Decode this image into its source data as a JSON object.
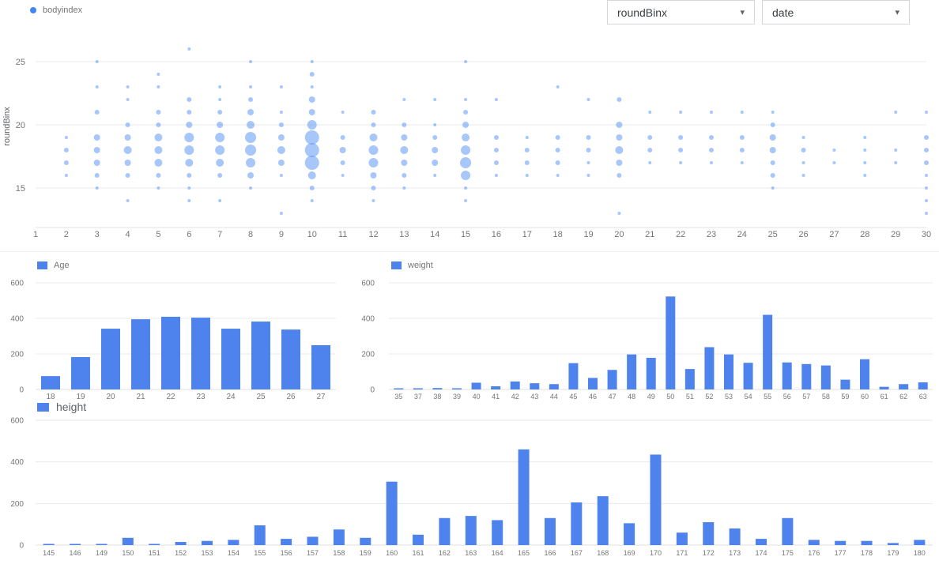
{
  "colors": {
    "accent": "#4285f4",
    "bar": "#4e82ec",
    "bubble": "#5e97f6",
    "grid": "#e9e9e9",
    "axis_line": "#e0e0e0",
    "axis_text": "#757575"
  },
  "icons": {
    "chevron_down": "▾"
  },
  "filters": [
    {
      "label": "roundBinx"
    },
    {
      "label": "date"
    }
  ],
  "chart_data": [
    {
      "id": "bodyindex-bubble",
      "type": "scatter",
      "legend": "bodyindex",
      "legend_position": "top-left",
      "ylabel": "roundBinx",
      "xlabel": "",
      "xlim": [
        1,
        30
      ],
      "ylim": [
        13,
        26
      ],
      "grid": true,
      "yticks": [
        15,
        20,
        25
      ],
      "xticks": [
        1,
        2,
        3,
        4,
        5,
        6,
        7,
        8,
        9,
        10,
        11,
        12,
        13,
        14,
        15,
        16,
        17,
        18,
        19,
        20,
        21,
        22,
        23,
        24,
        25,
        26,
        27,
        28,
        29,
        30
      ],
      "points": [
        [
          2,
          19,
          2
        ],
        [
          2,
          18,
          3
        ],
        [
          2,
          17,
          3
        ],
        [
          2,
          16,
          2
        ],
        [
          3,
          25,
          2
        ],
        [
          3,
          23,
          2
        ],
        [
          3,
          21,
          3
        ],
        [
          3,
          19,
          4
        ],
        [
          3,
          18,
          4
        ],
        [
          3,
          17,
          4
        ],
        [
          3,
          16,
          3
        ],
        [
          3,
          15,
          2
        ],
        [
          4,
          23,
          2
        ],
        [
          4,
          22,
          2
        ],
        [
          4,
          20,
          3
        ],
        [
          4,
          19,
          4
        ],
        [
          4,
          18,
          5
        ],
        [
          4,
          17,
          4
        ],
        [
          4,
          16,
          3
        ],
        [
          4,
          14,
          2
        ],
        [
          5,
          24,
          2
        ],
        [
          5,
          23,
          2
        ],
        [
          5,
          21,
          3
        ],
        [
          5,
          20,
          3
        ],
        [
          5,
          19,
          5
        ],
        [
          5,
          18,
          5
        ],
        [
          5,
          17,
          5
        ],
        [
          5,
          16,
          3
        ],
        [
          5,
          15,
          2
        ],
        [
          6,
          26,
          2
        ],
        [
          6,
          22,
          3
        ],
        [
          6,
          21,
          3
        ],
        [
          6,
          20,
          4
        ],
        [
          6,
          19,
          6
        ],
        [
          6,
          18,
          6
        ],
        [
          6,
          17,
          5
        ],
        [
          6,
          16,
          3
        ],
        [
          6,
          15,
          2
        ],
        [
          6,
          14,
          2
        ],
        [
          7,
          23,
          2
        ],
        [
          7,
          22,
          2
        ],
        [
          7,
          21,
          3
        ],
        [
          7,
          20,
          4
        ],
        [
          7,
          19,
          6
        ],
        [
          7,
          18,
          6
        ],
        [
          7,
          17,
          5
        ],
        [
          7,
          16,
          3
        ],
        [
          7,
          14,
          2
        ],
        [
          8,
          25,
          2
        ],
        [
          8,
          23,
          2
        ],
        [
          8,
          22,
          3
        ],
        [
          8,
          21,
          4
        ],
        [
          8,
          20,
          5
        ],
        [
          8,
          19,
          7
        ],
        [
          8,
          18,
          7
        ],
        [
          8,
          17,
          6
        ],
        [
          8,
          16,
          4
        ],
        [
          8,
          15,
          2
        ],
        [
          9,
          23,
          2
        ],
        [
          9,
          21,
          2
        ],
        [
          9,
          20,
          3
        ],
        [
          9,
          19,
          4
        ],
        [
          9,
          18,
          5
        ],
        [
          9,
          17,
          4
        ],
        [
          9,
          16,
          2
        ],
        [
          9,
          13,
          2
        ],
        [
          10,
          25,
          2
        ],
        [
          10,
          24,
          3
        ],
        [
          10,
          23,
          2
        ],
        [
          10,
          22,
          4
        ],
        [
          10,
          21,
          4
        ],
        [
          10,
          20,
          6
        ],
        [
          10,
          19,
          9
        ],
        [
          10,
          18,
          9
        ],
        [
          10,
          17,
          9
        ],
        [
          10,
          16,
          5
        ],
        [
          10,
          15,
          3
        ],
        [
          10,
          14,
          2
        ],
        [
          11,
          21,
          2
        ],
        [
          11,
          19,
          3
        ],
        [
          11,
          18,
          4
        ],
        [
          11,
          17,
          3
        ],
        [
          11,
          16,
          2
        ],
        [
          12,
          21,
          3
        ],
        [
          12,
          20,
          3
        ],
        [
          12,
          19,
          5
        ],
        [
          12,
          18,
          6
        ],
        [
          12,
          17,
          6
        ],
        [
          12,
          16,
          4
        ],
        [
          12,
          15,
          3
        ],
        [
          12,
          14,
          2
        ],
        [
          13,
          22,
          2
        ],
        [
          13,
          20,
          3
        ],
        [
          13,
          19,
          4
        ],
        [
          13,
          18,
          5
        ],
        [
          13,
          17,
          4
        ],
        [
          13,
          16,
          3
        ],
        [
          13,
          15,
          2
        ],
        [
          14,
          22,
          2
        ],
        [
          14,
          20,
          2
        ],
        [
          14,
          19,
          3
        ],
        [
          14,
          18,
          4
        ],
        [
          14,
          17,
          4
        ],
        [
          14,
          16,
          2
        ],
        [
          15,
          25,
          2
        ],
        [
          15,
          22,
          2
        ],
        [
          15,
          21,
          3
        ],
        [
          15,
          20,
          4
        ],
        [
          15,
          19,
          5
        ],
        [
          15,
          18,
          6
        ],
        [
          15,
          17,
          7
        ],
        [
          15,
          16,
          6
        ],
        [
          15,
          15,
          2
        ],
        [
          15,
          14,
          2
        ],
        [
          16,
          22,
          2
        ],
        [
          16,
          19,
          3
        ],
        [
          16,
          18,
          3
        ],
        [
          16,
          17,
          3
        ],
        [
          16,
          16,
          2
        ],
        [
          17,
          19,
          2
        ],
        [
          17,
          18,
          3
        ],
        [
          17,
          17,
          3
        ],
        [
          17,
          16,
          2
        ],
        [
          18,
          23,
          2
        ],
        [
          18,
          19,
          3
        ],
        [
          18,
          18,
          3
        ],
        [
          18,
          17,
          3
        ],
        [
          18,
          16,
          2
        ],
        [
          19,
          22,
          2
        ],
        [
          19,
          19,
          3
        ],
        [
          19,
          18,
          3
        ],
        [
          19,
          17,
          2
        ],
        [
          19,
          16,
          2
        ],
        [
          20,
          22,
          3
        ],
        [
          20,
          20,
          4
        ],
        [
          20,
          19,
          4
        ],
        [
          20,
          18,
          5
        ],
        [
          20,
          17,
          4
        ],
        [
          20,
          16,
          3
        ],
        [
          20,
          13,
          2
        ],
        [
          21,
          21,
          2
        ],
        [
          21,
          19,
          3
        ],
        [
          21,
          18,
          3
        ],
        [
          21,
          17,
          2
        ],
        [
          22,
          21,
          2
        ],
        [
          22,
          19,
          3
        ],
        [
          22,
          18,
          3
        ],
        [
          22,
          17,
          2
        ],
        [
          23,
          21,
          2
        ],
        [
          23,
          19,
          3
        ],
        [
          23,
          18,
          3
        ],
        [
          23,
          17,
          2
        ],
        [
          24,
          21,
          2
        ],
        [
          24,
          19,
          3
        ],
        [
          24,
          18,
          3
        ],
        [
          24,
          17,
          2
        ],
        [
          25,
          21,
          2
        ],
        [
          25,
          20,
          3
        ],
        [
          25,
          19,
          4
        ],
        [
          25,
          18,
          4
        ],
        [
          25,
          17,
          3
        ],
        [
          25,
          16,
          3
        ],
        [
          25,
          15,
          2
        ],
        [
          26,
          19,
          2
        ],
        [
          26,
          18,
          3
        ],
        [
          26,
          17,
          2
        ],
        [
          26,
          16,
          2
        ],
        [
          27,
          18,
          2
        ],
        [
          27,
          17,
          2
        ],
        [
          28,
          19,
          2
        ],
        [
          28,
          18,
          2
        ],
        [
          28,
          17,
          2
        ],
        [
          28,
          16,
          2
        ],
        [
          29,
          21,
          2
        ],
        [
          29,
          18,
          2
        ],
        [
          29,
          17,
          2
        ],
        [
          30,
          21,
          2
        ],
        [
          30,
          19,
          3
        ],
        [
          30,
          18,
          3
        ],
        [
          30,
          17,
          3
        ],
        [
          30,
          16,
          2
        ],
        [
          30,
          15,
          2
        ],
        [
          30,
          14,
          2
        ],
        [
          30,
          13,
          2
        ]
      ]
    },
    {
      "id": "age-histogram",
      "type": "bar",
      "legend": "Age",
      "legend_position": "top-left",
      "categories": [
        "18",
        "19",
        "20",
        "21",
        "22",
        "23",
        "24",
        "25",
        "26",
        "27"
      ],
      "values": [
        75,
        182,
        342,
        395,
        409,
        404,
        342,
        382,
        337,
        249
      ],
      "ylim": [
        0,
        600
      ],
      "yticks": [
        0,
        200,
        400,
        600
      ],
      "grid": true
    },
    {
      "id": "weight-histogram",
      "type": "bar",
      "legend": "weight",
      "legend_position": "top-left",
      "categories": [
        "35",
        "37",
        "38",
        "39",
        "40",
        "41",
        "42",
        "43",
        "44",
        "45",
        "46",
        "47",
        "48",
        "49",
        "50",
        "51",
        "52",
        "53",
        "54",
        "55",
        "56",
        "57",
        "58",
        "59",
        "60",
        "61",
        "62",
        "63"
      ],
      "values": [
        3,
        5,
        8,
        3,
        38,
        18,
        45,
        35,
        30,
        148,
        65,
        110,
        197,
        178,
        523,
        115,
        238,
        197,
        150,
        420,
        152,
        143,
        135,
        55,
        170,
        15,
        30,
        40
      ],
      "ylim": [
        0,
        600
      ],
      "yticks": [
        0,
        200,
        400,
        600
      ],
      "grid": true
    },
    {
      "id": "height-histogram",
      "type": "bar",
      "legend": "height",
      "legend_position": "top-left",
      "categories": [
        "145",
        "146",
        "149",
        "150",
        "151",
        "152",
        "153",
        "154",
        "155",
        "156",
        "157",
        "158",
        "159",
        "160",
        "161",
        "162",
        "163",
        "164",
        "165",
        "166",
        "167",
        "168",
        "169",
        "170",
        "171",
        "172",
        "173",
        "174",
        "175",
        "176",
        "177",
        "178",
        "179",
        "180"
      ],
      "values": [
        3,
        2,
        5,
        35,
        2,
        15,
        20,
        25,
        95,
        30,
        40,
        75,
        35,
        305,
        50,
        130,
        140,
        120,
        460,
        130,
        205,
        235,
        105,
        435,
        60,
        110,
        80,
        30,
        130,
        25,
        20,
        20,
        10,
        25
      ],
      "ylim": [
        0,
        600
      ],
      "yticks": [
        0,
        200,
        400,
        600
      ],
      "grid": true
    }
  ]
}
